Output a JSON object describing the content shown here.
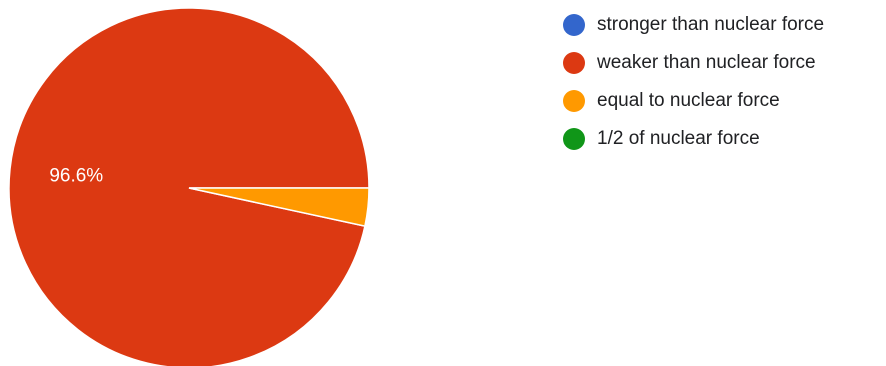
{
  "chart_data": {
    "type": "pie",
    "categories": [
      "stronger than nuclear force",
      "weaker than nuclear force",
      "equal to nuclear force",
      "1/2 of nuclear force"
    ],
    "values": [
      0,
      96.6,
      3.4,
      0
    ],
    "colors": [
      "#3366cc",
      "#dc3912",
      "#ff9900",
      "#109618"
    ],
    "data_labels": [
      "",
      "96.6%",
      "",
      ""
    ],
    "legend_position": "right",
    "slice_order": "counterclockwise-from-right"
  }
}
